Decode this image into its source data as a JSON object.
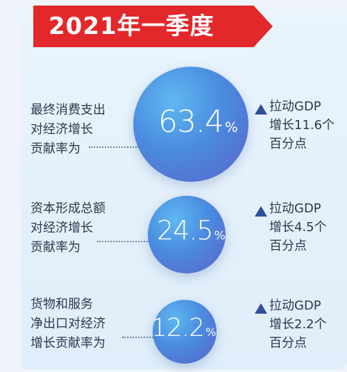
{
  "title": "2021年一季度",
  "items": [
    {
      "label_lines": [
        "最终消费支出",
        "对经济增长",
        "贡献率为"
      ],
      "value": "63.4",
      "unit": "%",
      "impact_lines": [
        "拉动GDP",
        "增长11.6个",
        "百分点"
      ]
    },
    {
      "label_lines": [
        "资本形成总额",
        "对经济增长",
        "贡献率为"
      ],
      "value": "24.5",
      "unit": "%",
      "impact_lines": [
        "拉动GDP",
        "增长4.5个",
        "百分点"
      ]
    },
    {
      "label_lines": [
        "货物和服务",
        "净出口对经济",
        "增长贡献率为"
      ],
      "value": "12.2",
      "unit": "%",
      "impact_lines": [
        "拉动GDP",
        "增长2.2个",
        "百分点"
      ]
    }
  ],
  "colors": {
    "banner": "#e2282a",
    "bubble_light": "#5fb8f0",
    "bubble_dark": "#5b63c9",
    "triangle": "#2f4f9a",
    "background": "#e9f4fc"
  }
}
